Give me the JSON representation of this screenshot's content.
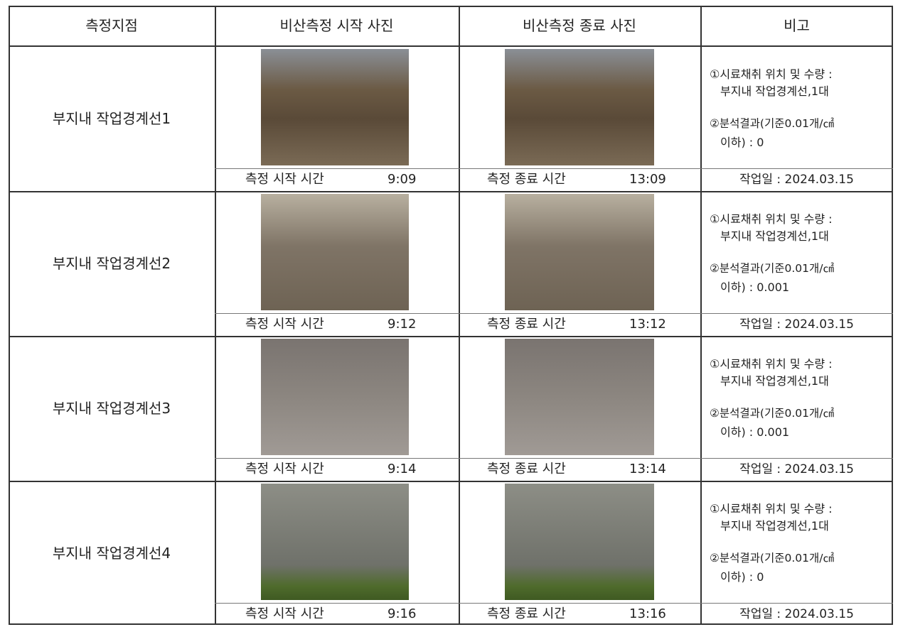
{
  "header": [
    "측정지점",
    "비산측정 시작 사진",
    "비산측정 종료 사진",
    "비고"
  ],
  "rows": [
    {
      "location": "부지내 작업경계선1",
      "start_label": "측정 시작 시간",
      "start_time": "9:09",
      "end_label": "측정 종료 시간",
      "end_time": "13:09",
      "note1": "①시료채취 위치 및 수량 :",
      "note1_detail": "부지내 작업경계선,1대",
      "note2": "②분석결과(기준0.01개/㎠",
      "note2_detail": "이하) : 0",
      "date": "작업일 : 2024.03.15"
    },
    {
      "location": "부지내 작업경계선2",
      "start_label": "측정 시작 시간",
      "start_time": "9:12",
      "end_label": "측정 종료 시간",
      "end_time": "13:12",
      "note1": "①시료채취 위치 및 수량 :",
      "note1_detail": "부지내 작업경계선,1대",
      "note2": "②분석결과(기준0.01개/㎠",
      "note2_detail": "이하) : 0.001",
      "date": "작업일 : 2024.03.15"
    },
    {
      "location": "부지내 작업경계선3",
      "start_label": "측정 시작 시간",
      "start_time": "9:14",
      "end_label": "측정 종료 시간",
      "end_time": "13:14",
      "note1": "①시료채취 위치 및 수량 :",
      "note1_detail": "부지내 작업경계선,1대",
      "note2": "②분석결과(기준0.01개/㎠",
      "note2_detail": "이하) : 0.001",
      "date": "작업일 : 2024.03.15"
    },
    {
      "location": "부지내 작업경계선4",
      "start_label": "측정 시작 시간",
      "start_time": "9:16",
      "end_label": "측정 종료 시간",
      "end_time": "13:16",
      "note1": "①시료채취 위치 및 수량 :",
      "note1_detail": "부지내 작업경계선,1대",
      "note2": "②분석결과(기준0.01개/㎠",
      "note2_detail": "이하) : 0",
      "date": "작업일 : 2024.03.15"
    }
  ]
}
